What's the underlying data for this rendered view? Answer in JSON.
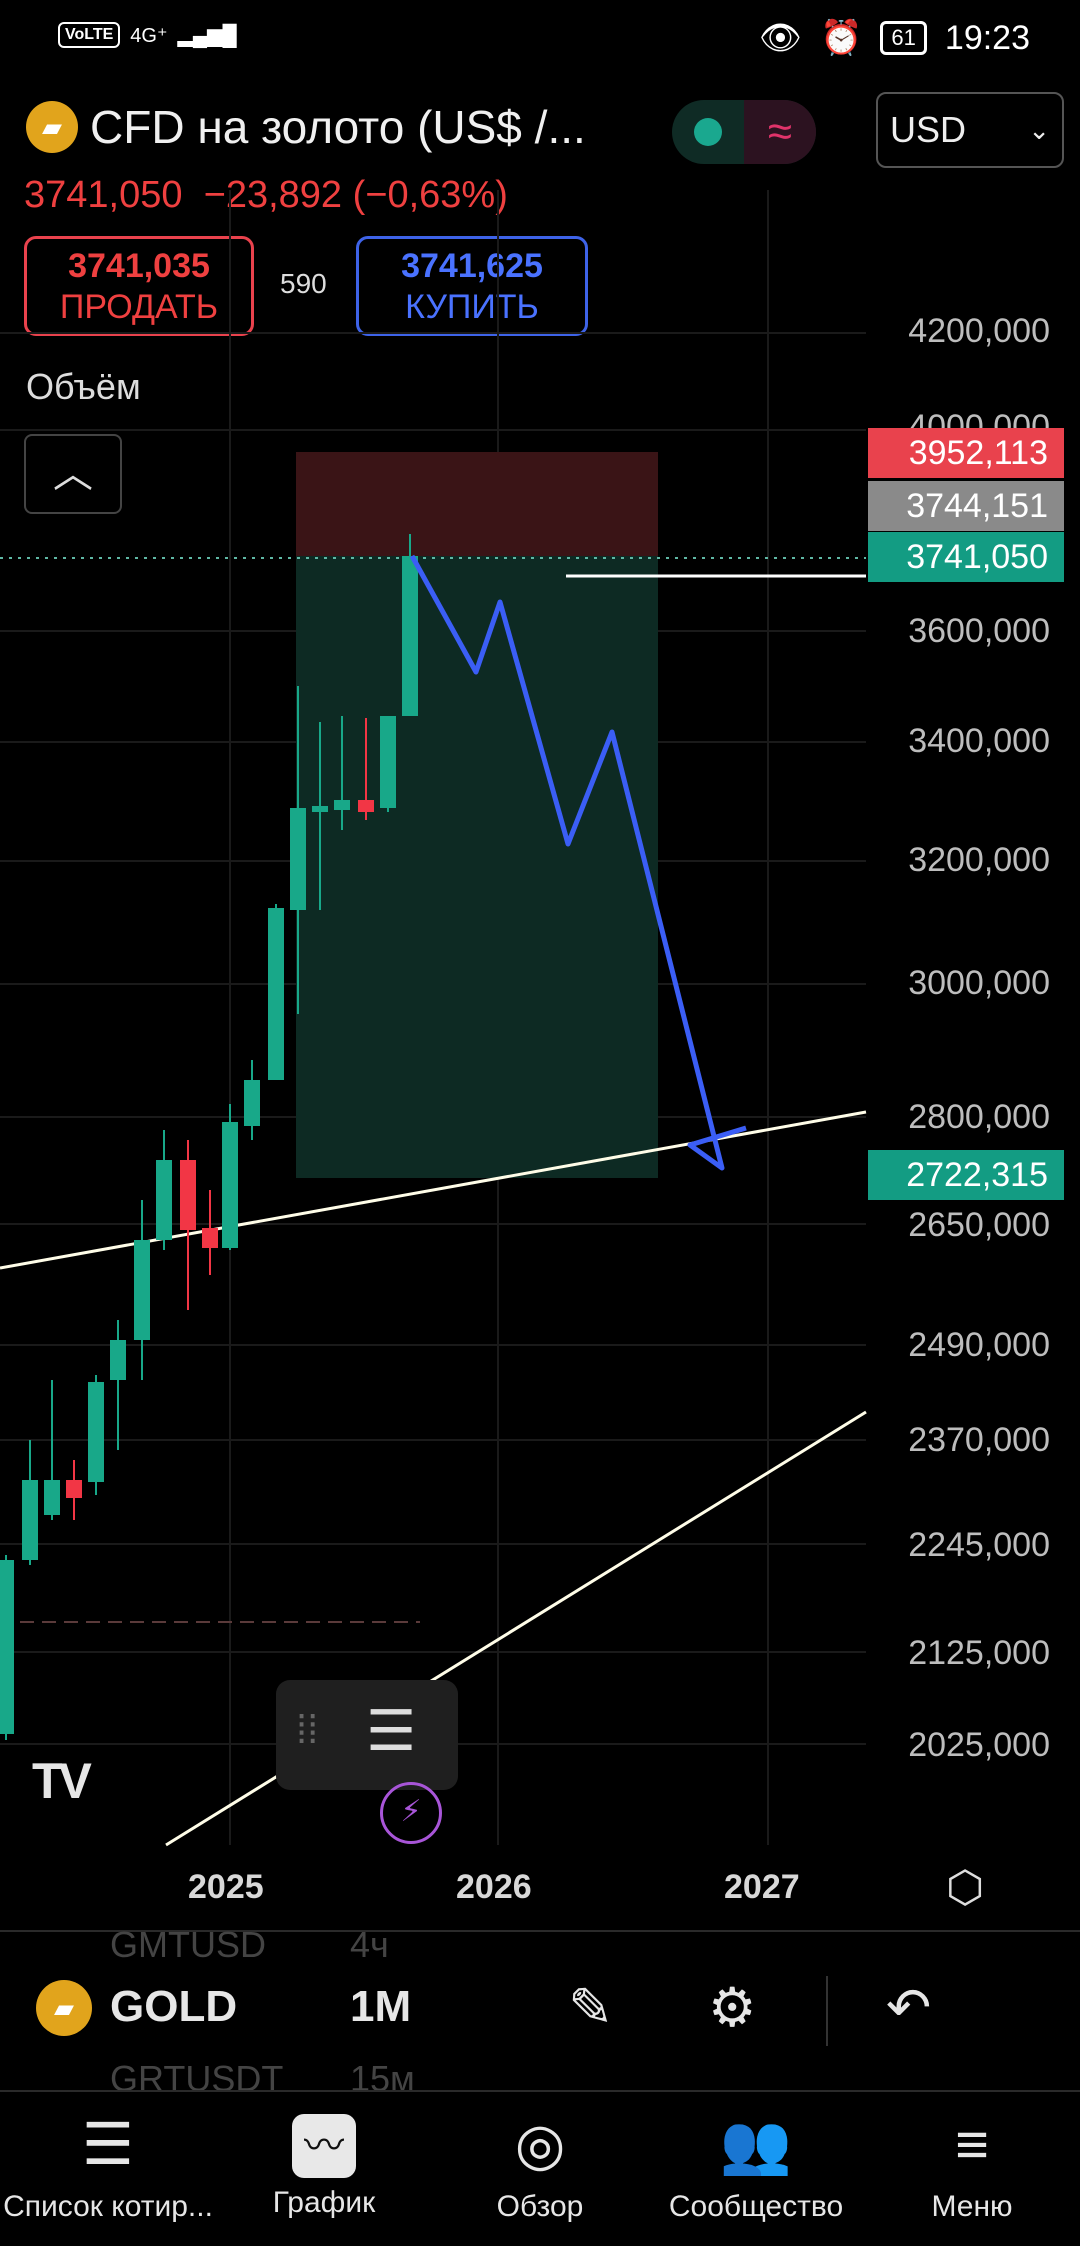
{
  "status_bar": {
    "volte": "VoLTE",
    "signal": "4G⁺",
    "battery": "61",
    "time": "19:23"
  },
  "header": {
    "title": "CFD на золото (US$ /...",
    "currency": "USD",
    "price": "3741,050",
    "change": "−23,892 (−0,63%)",
    "sell_price": "3741,035",
    "sell_label": "ПРОДАТЬ",
    "spread": "590",
    "buy_price": "3741,625",
    "buy_label": "КУПИТЬ",
    "volume_label": "Объём"
  },
  "chart_data": {
    "type": "candlestick",
    "y_ticks": [
      "4200,000",
      "4000,000",
      "3600,000",
      "3400,000",
      "3200,000",
      "3000,000",
      "2800,000",
      "2650,000",
      "2490,000",
      "2370,000",
      "2245,000",
      "2125,000",
      "2025,000"
    ],
    "x_ticks": [
      "2025",
      "2026",
      "2027"
    ],
    "price_tags": [
      {
        "value": "3952,113",
        "color": "#e9424d"
      },
      {
        "value": "3744,151",
        "color": "#8a8a8a"
      },
      {
        "value": "3741,050",
        "color": "#139c83"
      },
      {
        "value": "2722,315",
        "color": "#139c83"
      }
    ],
    "colors": {
      "up": "#18a889",
      "down": "#f23645",
      "projection": "#3b5ef5",
      "trendline": "#fffde8"
    }
  },
  "toolbar": {
    "symbol": "GOLD",
    "interval": "1M",
    "ghost_top_symbol": "GMTUSD",
    "ghost_top_interval": "4ч",
    "ghost_bottom_symbol": "GRTUSDT",
    "ghost_bottom_interval": "15м"
  },
  "nav": [
    {
      "label": "Список котир...",
      "icon": "list-icon"
    },
    {
      "label": "График",
      "icon": "chart-icon"
    },
    {
      "label": "Обзор",
      "icon": "compass-icon"
    },
    {
      "label": "Сообщество",
      "icon": "community-icon"
    },
    {
      "label": "Меню",
      "icon": "menu-icon"
    }
  ]
}
